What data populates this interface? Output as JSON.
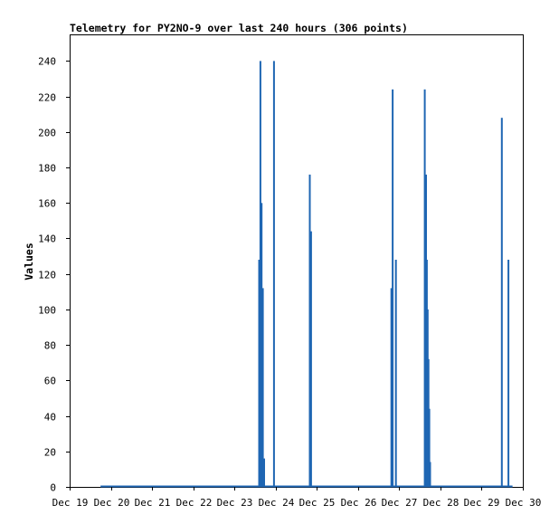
{
  "chart_data": {
    "type": "bar",
    "title": "Telemetry for PY2NO-9 over last 240 hours (306 points)",
    "xlabel": "",
    "ylabel": "Values",
    "ylim": [
      0,
      255
    ],
    "yticks": [
      0,
      20,
      40,
      60,
      80,
      100,
      120,
      140,
      160,
      180,
      200,
      220,
      240
    ],
    "xlim": [
      0,
      11
    ],
    "xticks": [
      {
        "x": 0,
        "label": "Dec 19"
      },
      {
        "x": 1,
        "label": "Dec 20"
      },
      {
        "x": 2,
        "label": "Dec 21"
      },
      {
        "x": 3,
        "label": "Dec 22"
      },
      {
        "x": 4,
        "label": "Dec 23"
      },
      {
        "x": 5,
        "label": "Dec 24"
      },
      {
        "x": 6,
        "label": "Dec 25"
      },
      {
        "x": 7,
        "label": "Dec 26"
      },
      {
        "x": 8,
        "label": "Dec 27"
      },
      {
        "x": 9,
        "label": "Dec 28"
      },
      {
        "x": 10,
        "label": "Dec 29"
      },
      {
        "x": 11,
        "label": "Dec 30"
      }
    ],
    "baseline": {
      "x_start": 0.75,
      "x_end": 10.75,
      "value": 0
    },
    "bar_color": "#1f66b3",
    "grid": false,
    "legend": "none",
    "points": [
      {
        "x": 4.6,
        "y": 128
      },
      {
        "x": 4.63,
        "y": 240
      },
      {
        "x": 4.66,
        "y": 160
      },
      {
        "x": 4.69,
        "y": 112
      },
      {
        "x": 4.72,
        "y": 16
      },
      {
        "x": 4.96,
        "y": 240
      },
      {
        "x": 5.83,
        "y": 176
      },
      {
        "x": 5.86,
        "y": 144
      },
      {
        "x": 7.81,
        "y": 112
      },
      {
        "x": 7.84,
        "y": 224
      },
      {
        "x": 7.92,
        "y": 128
      },
      {
        "x": 8.62,
        "y": 224
      },
      {
        "x": 8.65,
        "y": 176
      },
      {
        "x": 8.67,
        "y": 128
      },
      {
        "x": 8.69,
        "y": 100
      },
      {
        "x": 8.71,
        "y": 72
      },
      {
        "x": 8.73,
        "y": 44
      },
      {
        "x": 8.75,
        "y": 14
      },
      {
        "x": 10.49,
        "y": 208
      },
      {
        "x": 10.65,
        "y": 128
      }
    ]
  }
}
